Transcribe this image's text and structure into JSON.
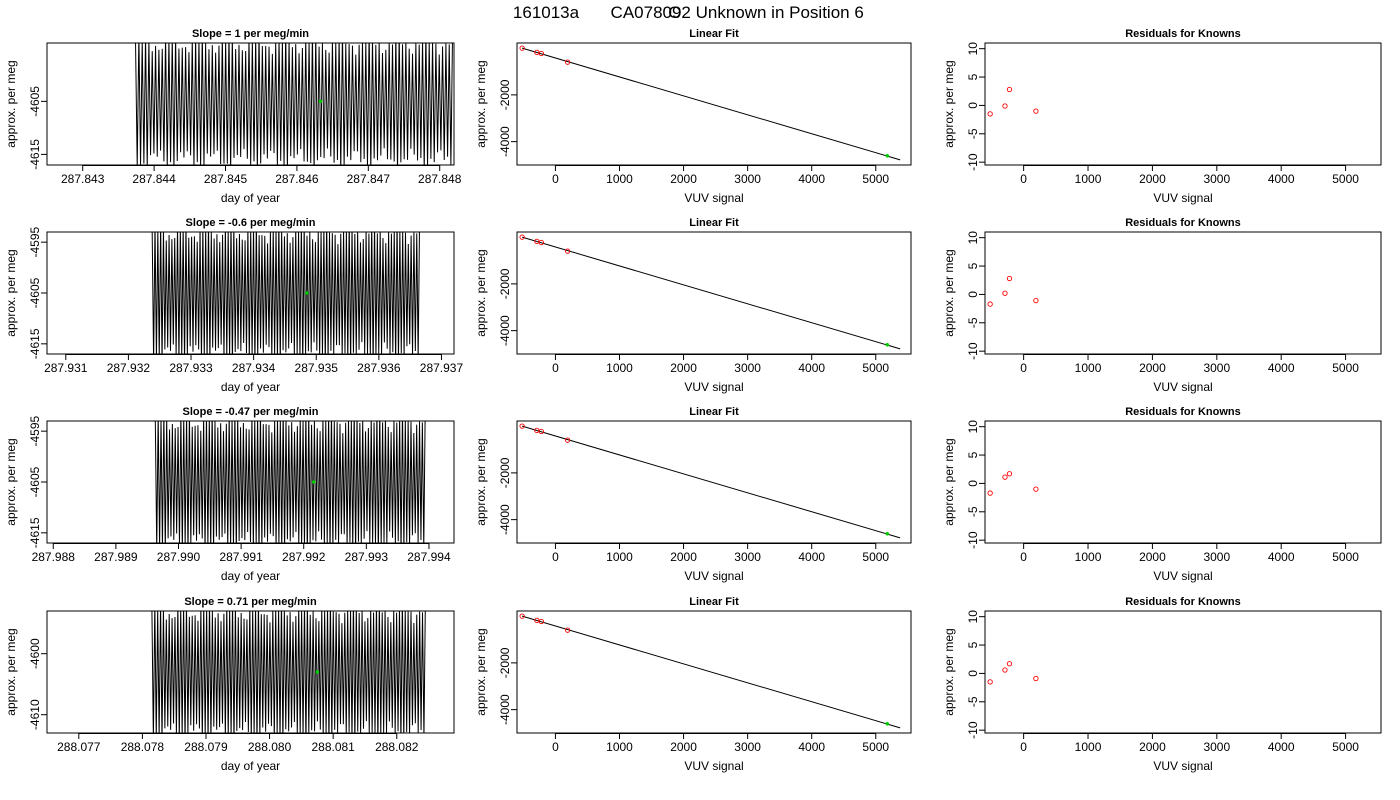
{
  "figure": {
    "title_parts": [
      "161013a",
      "CA07809",
      "O2 Unknown in Position  6"
    ],
    "colors": {
      "known_marker": "#ff0000",
      "unknown_marker": "#00cc00",
      "trace": "#000000"
    }
  },
  "chart_data": [
    {
      "type": "line",
      "row": 1,
      "panel": "timeseries",
      "title": "Slope =  1  per meg/min",
      "xlabel": "day of year",
      "ylabel": "approx. per meg",
      "xlim": [
        287.8425,
        287.8482
      ],
      "ylim": [
        -4617,
        -4594
      ],
      "xticks": [
        "287.843",
        "287.844",
        "287.845",
        "287.846",
        "287.847",
        "287.848"
      ],
      "yticks": [
        "-4605",
        "-4615"
      ],
      "trace": {
        "start": 287.84374,
        "end": 287.84818,
        "center": -4605,
        "amplitude": 11,
        "oscillations": 95
      },
      "unknown_point": {
        "x": 287.84633,
        "y": -4605
      }
    },
    {
      "type": "scatter",
      "row": 1,
      "panel": "linear_fit",
      "title": "Linear Fit",
      "xlabel": "VUV signal",
      "ylabel": "approx. per meg",
      "xlim": [
        -600,
        5550
      ],
      "ylim": [
        -5000,
        220
      ],
      "xticks": [
        "0",
        "1000",
        "2000",
        "3000",
        "4000",
        "5000"
      ],
      "yticks": [
        "-2000",
        "-4000"
      ],
      "knowns": [
        {
          "x": -520,
          "y": 0
        },
        {
          "x": -290,
          "y": -180
        },
        {
          "x": -220,
          "y": -230
        },
        {
          "x": 190,
          "y": -600
        }
      ],
      "unknown": {
        "x": 5180,
        "y": -4605
      },
      "fit_line": {
        "x": [
          -520,
          5380
        ],
        "y": [
          0,
          -4780
        ]
      }
    },
    {
      "type": "scatter",
      "row": 1,
      "panel": "residuals",
      "title": "Residuals for Knowns",
      "xlabel": "VUV signal",
      "ylabel": "approx. per meg",
      "xlim": [
        -600,
        5550
      ],
      "ylim": [
        -10.5,
        11
      ],
      "xticks": [
        "0",
        "1000",
        "2000",
        "3000",
        "4000",
        "5000"
      ],
      "yticks": [
        "-10",
        "-5",
        "0",
        "5",
        "10"
      ],
      "points": [
        {
          "x": -520,
          "y": -1.5
        },
        {
          "x": -290,
          "y": -0.1
        },
        {
          "x": -220,
          "y": 2.8
        },
        {
          "x": 190,
          "y": -1.0
        }
      ]
    },
    {
      "type": "line",
      "row": 2,
      "panel": "timeseries",
      "title": "Slope =  -0.6  per meg/min",
      "xlabel": "day of year",
      "ylabel": "approx. per meg",
      "xlim": [
        287.9307,
        287.9372
      ],
      "ylim": [
        -4617,
        -4593
      ],
      "xticks": [
        "287.931",
        "287.932",
        "287.933",
        "287.934",
        "287.935",
        "287.936",
        "287.937"
      ],
      "yticks": [
        "-4595",
        "-4605",
        "-4615"
      ],
      "trace": {
        "start": 287.93238,
        "end": 287.93665,
        "center": -4605,
        "amplitude": 12,
        "oscillations": 95
      },
      "unknown_point": {
        "x": 287.93485,
        "y": -4605
      }
    },
    {
      "type": "scatter",
      "row": 2,
      "panel": "linear_fit",
      "title": "Linear Fit",
      "xlabel": "VUV signal",
      "ylabel": "approx. per meg",
      "xlim": [
        -600,
        5550
      ],
      "ylim": [
        -5000,
        220
      ],
      "xticks": [
        "0",
        "1000",
        "2000",
        "3000",
        "4000",
        "5000"
      ],
      "yticks": [
        "-2000",
        "-4000"
      ],
      "knowns": [
        {
          "x": -520,
          "y": 0
        },
        {
          "x": -290,
          "y": -180
        },
        {
          "x": -220,
          "y": -230
        },
        {
          "x": 190,
          "y": -600
        }
      ],
      "unknown": {
        "x": 5180,
        "y": -4605
      },
      "fit_line": {
        "x": [
          -520,
          5380
        ],
        "y": [
          0,
          -4780
        ]
      }
    },
    {
      "type": "scatter",
      "row": 2,
      "panel": "residuals",
      "title": "Residuals for Knowns",
      "xlabel": "VUV signal",
      "ylabel": "approx. per meg",
      "xlim": [
        -600,
        5550
      ],
      "ylim": [
        -10.5,
        11
      ],
      "xticks": [
        "0",
        "1000",
        "2000",
        "3000",
        "4000",
        "5000"
      ],
      "yticks": [
        "-10",
        "-5",
        "0",
        "5",
        "10"
      ],
      "points": [
        {
          "x": -520,
          "y": -1.7
        },
        {
          "x": -290,
          "y": 0.2
        },
        {
          "x": -220,
          "y": 2.8
        },
        {
          "x": 190,
          "y": -1.1
        }
      ]
    },
    {
      "type": "line",
      "row": 3,
      "panel": "timeseries",
      "title": "Slope =  -0.47  per meg/min",
      "xlabel": "day of year",
      "ylabel": "approx. per meg",
      "xlim": [
        287.9879,
        287.9944
      ],
      "ylim": [
        -4617,
        -4593
      ],
      "xticks": [
        "287.988",
        "287.989",
        "287.990",
        "287.991",
        "287.992",
        "287.993",
        "287.994"
      ],
      "yticks": [
        "-4595",
        "-4605",
        "-4615"
      ],
      "trace": {
        "start": 287.98963,
        "end": 287.99394,
        "center": -4605,
        "amplitude": 12,
        "oscillations": 95
      },
      "unknown_point": {
        "x": 287.99216,
        "y": -4605
      }
    },
    {
      "type": "scatter",
      "row": 3,
      "panel": "linear_fit",
      "title": "Linear Fit",
      "xlabel": "VUV signal",
      "ylabel": "approx. per meg",
      "xlim": [
        -600,
        5550
      ],
      "ylim": [
        -5000,
        220
      ],
      "xticks": [
        "0",
        "1000",
        "2000",
        "3000",
        "4000",
        "5000"
      ],
      "yticks": [
        "-2000",
        "-4000"
      ],
      "knowns": [
        {
          "x": -520,
          "y": 0
        },
        {
          "x": -290,
          "y": -180
        },
        {
          "x": -220,
          "y": -230
        },
        {
          "x": 190,
          "y": -600
        }
      ],
      "unknown": {
        "x": 5180,
        "y": -4605
      },
      "fit_line": {
        "x": [
          -520,
          5380
        ],
        "y": [
          0,
          -4780
        ]
      }
    },
    {
      "type": "scatter",
      "row": 3,
      "panel": "residuals",
      "title": "Residuals for Knowns",
      "xlabel": "VUV signal",
      "ylabel": "approx. per meg",
      "xlim": [
        -600,
        5550
      ],
      "ylim": [
        -10.5,
        11
      ],
      "xticks": [
        "0",
        "1000",
        "2000",
        "3000",
        "4000",
        "5000"
      ],
      "yticks": [
        "-10",
        "-5",
        "0",
        "5",
        "10"
      ],
      "points": [
        {
          "x": -520,
          "y": -1.7
        },
        {
          "x": -290,
          "y": 1.1
        },
        {
          "x": -220,
          "y": 1.7
        },
        {
          "x": 190,
          "y": -1.0
        }
      ]
    },
    {
      "type": "line",
      "row": 4,
      "panel": "timeseries",
      "title": "Slope =  0.71  per meg/min",
      "xlabel": "day of year",
      "ylabel": "approx. per meg",
      "xlim": [
        288.0765,
        288.0829
      ],
      "ylim": [
        -4613,
        -4593
      ],
      "xticks": [
        "288.077",
        "288.078",
        "288.079",
        "288.080",
        "288.081",
        "288.082"
      ],
      "yticks": [
        "-4600",
        "-4610"
      ],
      "trace": {
        "start": 288.07815,
        "end": 288.08245,
        "center": -4603,
        "amplitude": 10,
        "oscillations": 95
      },
      "unknown_point": {
        "x": 288.08075,
        "y": -4603
      }
    },
    {
      "type": "scatter",
      "row": 4,
      "panel": "linear_fit",
      "title": "Linear Fit",
      "xlabel": "VUV signal",
      "ylabel": "approx. per meg",
      "xlim": [
        -600,
        5550
      ],
      "ylim": [
        -5000,
        220
      ],
      "xticks": [
        "0",
        "1000",
        "2000",
        "3000",
        "4000",
        "5000"
      ],
      "yticks": [
        "-2000",
        "-4000"
      ],
      "knowns": [
        {
          "x": -520,
          "y": 0
        },
        {
          "x": -290,
          "y": -180
        },
        {
          "x": -220,
          "y": -230
        },
        {
          "x": 190,
          "y": -600
        }
      ],
      "unknown": {
        "x": 5180,
        "y": -4605
      },
      "fit_line": {
        "x": [
          -520,
          5380
        ],
        "y": [
          0,
          -4780
        ]
      }
    },
    {
      "type": "scatter",
      "row": 4,
      "panel": "residuals",
      "title": "Residuals for Knowns",
      "xlabel": "VUV signal",
      "ylabel": "approx. per meg",
      "xlim": [
        -600,
        5550
      ],
      "ylim": [
        -10.5,
        11
      ],
      "xticks": [
        "0",
        "1000",
        "2000",
        "3000",
        "4000",
        "5000"
      ],
      "yticks": [
        "-10",
        "-5",
        "0",
        "5",
        "10"
      ],
      "points": [
        {
          "x": -520,
          "y": -1.5
        },
        {
          "x": -290,
          "y": 0.6
        },
        {
          "x": -220,
          "y": 1.7
        },
        {
          "x": 190,
          "y": -0.9
        }
      ]
    }
  ]
}
